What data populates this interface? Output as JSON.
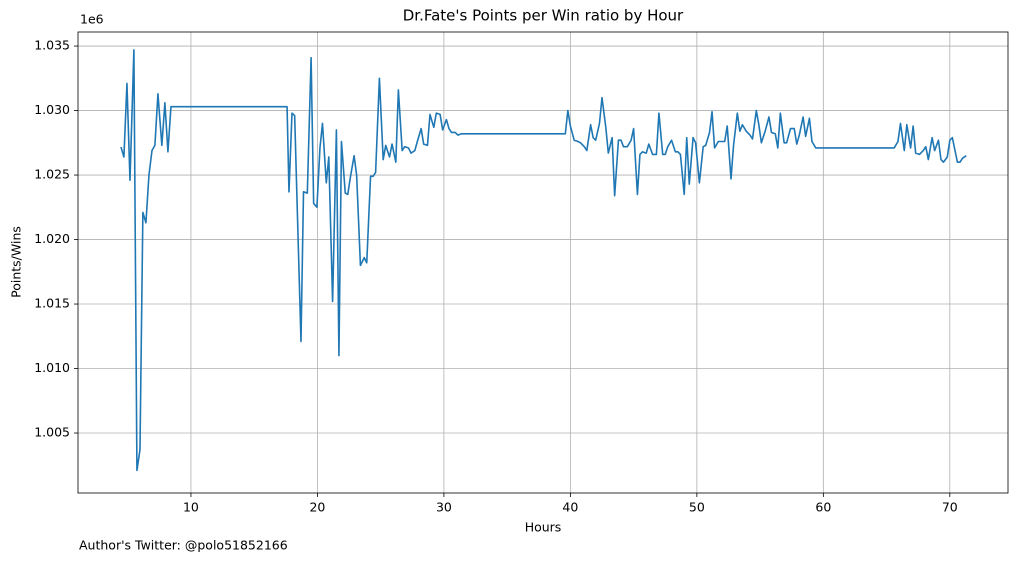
{
  "chart_data": {
    "type": "line",
    "title": "Dr.Fate's Points per Win ratio by Hour",
    "xlabel": "Hours",
    "ylabel": "Points/Wins",
    "y_offset_label": "1e6",
    "footnote": "Author's Twitter: @polo51852166",
    "grid": true,
    "xlim": [
      1.07,
      74.6
    ],
    "xticks": [
      10,
      20,
      30,
      40,
      50,
      60,
      70
    ],
    "ylim": [
      1.00035,
      1.03609
    ],
    "yticks": [
      {
        "value": 1.005,
        "label": "1.005"
      },
      {
        "value": 1.01,
        "label": "1.010"
      },
      {
        "value": 1.015,
        "label": "1.015"
      },
      {
        "value": 1.02,
        "label": "1.020"
      },
      {
        "value": 1.025,
        "label": "1.025"
      },
      {
        "value": 1.03,
        "label": "1.030"
      },
      {
        "value": 1.035,
        "label": "1.035"
      }
    ],
    "x": [
      4.47,
      4.7,
      4.94,
      5.18,
      5.49,
      5.73,
      5.97,
      6.2,
      6.44,
      6.68,
      6.92,
      7.15,
      7.39,
      7.7,
      7.94,
      8.18,
      8.42,
      17.6,
      17.75,
      17.99,
      18.2,
      18.7,
      18.9,
      19.2,
      19.5,
      19.7,
      19.96,
      20.2,
      20.4,
      20.7,
      20.9,
      21.2,
      21.5,
      21.7,
      21.9,
      22.2,
      22.4,
      22.6,
      22.9,
      23.1,
      23.4,
      23.7,
      23.9,
      24.2,
      24.4,
      24.6,
      24.9,
      25.2,
      25.4,
      25.7,
      25.9,
      26.2,
      26.4,
      26.7,
      26.9,
      27.2,
      27.4,
      27.7,
      27.9,
      28.2,
      28.4,
      28.7,
      28.9,
      29.2,
      29.4,
      29.7,
      29.9,
      30.2,
      30.4,
      30.6,
      30.9,
      31.1,
      31.4,
      39.6,
      39.8,
      40.0,
      40.3,
      40.6,
      40.8,
      41.1,
      41.3,
      41.6,
      41.8,
      42.0,
      42.3,
      42.5,
      42.8,
      43.0,
      43.3,
      43.5,
      43.8,
      44.0,
      44.2,
      44.5,
      44.8,
      45.0,
      45.3,
      45.5,
      45.7,
      46.0,
      46.2,
      46.5,
      46.8,
      47.0,
      47.3,
      47.5,
      47.7,
      48.0,
      48.3,
      48.5,
      48.7,
      49.0,
      49.2,
      49.4,
      49.7,
      49.9,
      50.2,
      50.5,
      50.7,
      51.0,
      51.2,
      51.4,
      51.7,
      51.9,
      52.2,
      52.4,
      52.7,
      52.9,
      53.2,
      53.4,
      53.6,
      53.9,
      54.2,
      54.4,
      54.7,
      54.9,
      55.1,
      55.4,
      55.7,
      55.9,
      56.2,
      56.4,
      56.6,
      56.9,
      57.1,
      57.4,
      57.7,
      57.9,
      58.1,
      58.4,
      58.6,
      58.9,
      59.1,
      59.4,
      59.6,
      65.6,
      65.9,
      66.1,
      66.4,
      66.6,
      66.9,
      67.1,
      67.3,
      67.6,
      67.9,
      68.1,
      68.3,
      68.6,
      68.8,
      69.1,
      69.3,
      69.5,
      69.8,
      70.0,
      70.2,
      70.6,
      70.8,
      71.0,
      71.3
    ],
    "series": [
      {
        "color": "#1f77b4",
        "values": [
          1.02717,
          1.0264,
          1.0321,
          1.0246,
          1.0347,
          1.0021,
          1.0037,
          1.0221,
          1.0213,
          1.025,
          1.0269,
          1.0273,
          1.0313,
          1.0273,
          1.0306,
          1.0268,
          1.0303,
          1.0303,
          1.0237,
          1.0298,
          1.0296,
          1.0121,
          1.0237,
          1.0236,
          1.0341,
          1.0228,
          1.0225,
          1.0271,
          1.029,
          1.0244,
          1.0264,
          1.0152,
          1.0285,
          1.011,
          1.0276,
          1.0236,
          1.0235,
          1.0248,
          1.0265,
          1.025,
          1.018,
          1.0186,
          1.0182,
          1.0249,
          1.0249,
          1.0252,
          1.0325,
          1.0262,
          1.0273,
          1.0264,
          1.0274,
          1.026,
          1.0316,
          1.0269,
          1.0272,
          1.0271,
          1.0267,
          1.0269,
          1.0276,
          1.0286,
          1.0274,
          1.0273,
          1.0297,
          1.0287,
          1.0298,
          1.0297,
          1.0285,
          1.0293,
          1.0286,
          1.0283,
          1.0283,
          1.0281,
          1.0282,
          1.0282,
          1.03,
          1.0288,
          1.0277,
          1.0276,
          1.0275,
          1.0272,
          1.0269,
          1.0289,
          1.0279,
          1.0277,
          1.029,
          1.031,
          1.0287,
          1.0267,
          1.0279,
          1.0234,
          1.0277,
          1.0277,
          1.0272,
          1.0272,
          1.0277,
          1.0286,
          1.0235,
          1.0266,
          1.0268,
          1.0267,
          1.0274,
          1.0266,
          1.0266,
          1.0298,
          1.0266,
          1.0266,
          1.0272,
          1.0277,
          1.0268,
          1.0268,
          1.0266,
          1.0235,
          1.0279,
          1.0243,
          1.0279,
          1.0275,
          1.0244,
          1.0272,
          1.0273,
          1.0283,
          1.0299,
          1.0271,
          1.0276,
          1.0276,
          1.0276,
          1.0288,
          1.0247,
          1.0273,
          1.0298,
          1.0284,
          1.0289,
          1.0284,
          1.0281,
          1.0278,
          1.03,
          1.0289,
          1.0275,
          1.0284,
          1.0295,
          1.0283,
          1.0282,
          1.0271,
          1.0298,
          1.0275,
          1.0275,
          1.0286,
          1.0286,
          1.0274,
          1.0281,
          1.0295,
          1.028,
          1.0294,
          1.0276,
          1.0271,
          1.0271,
          1.0271,
          1.0276,
          1.029,
          1.0269,
          1.0289,
          1.0271,
          1.0288,
          1.0267,
          1.0266,
          1.0269,
          1.0272,
          1.0262,
          1.0279,
          1.0269,
          1.0277,
          1.0262,
          1.026,
          1.0264,
          1.0277,
          1.0279,
          1.026,
          1.026,
          1.0263,
          1.0265
        ]
      }
    ]
  }
}
